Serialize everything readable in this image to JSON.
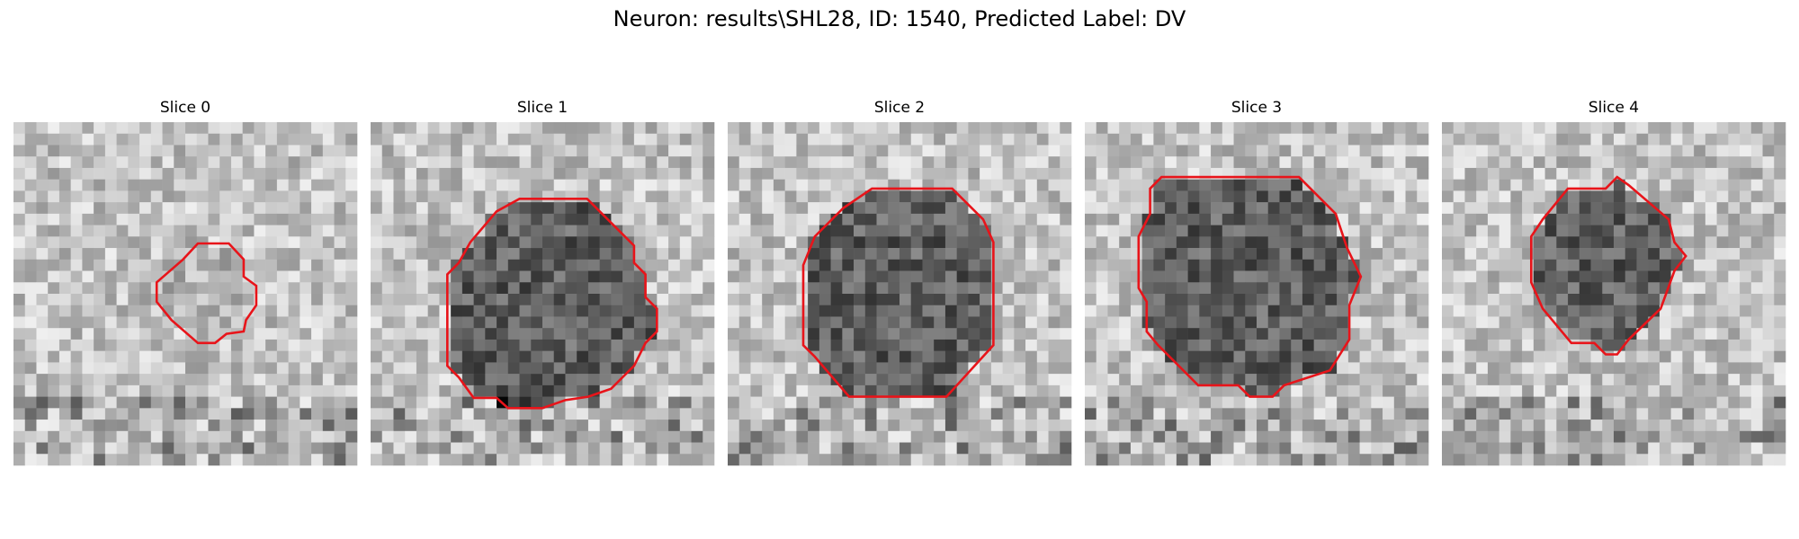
{
  "title": "Neuron: results\\SHL28, ID: 1540, Predicted Label: DV",
  "panels": [
    {
      "title": "Slice 0"
    },
    {
      "title": "Slice 1"
    },
    {
      "title": "Slice 2"
    },
    {
      "title": "Slice 3"
    },
    {
      "title": "Slice 4"
    }
  ]
}
